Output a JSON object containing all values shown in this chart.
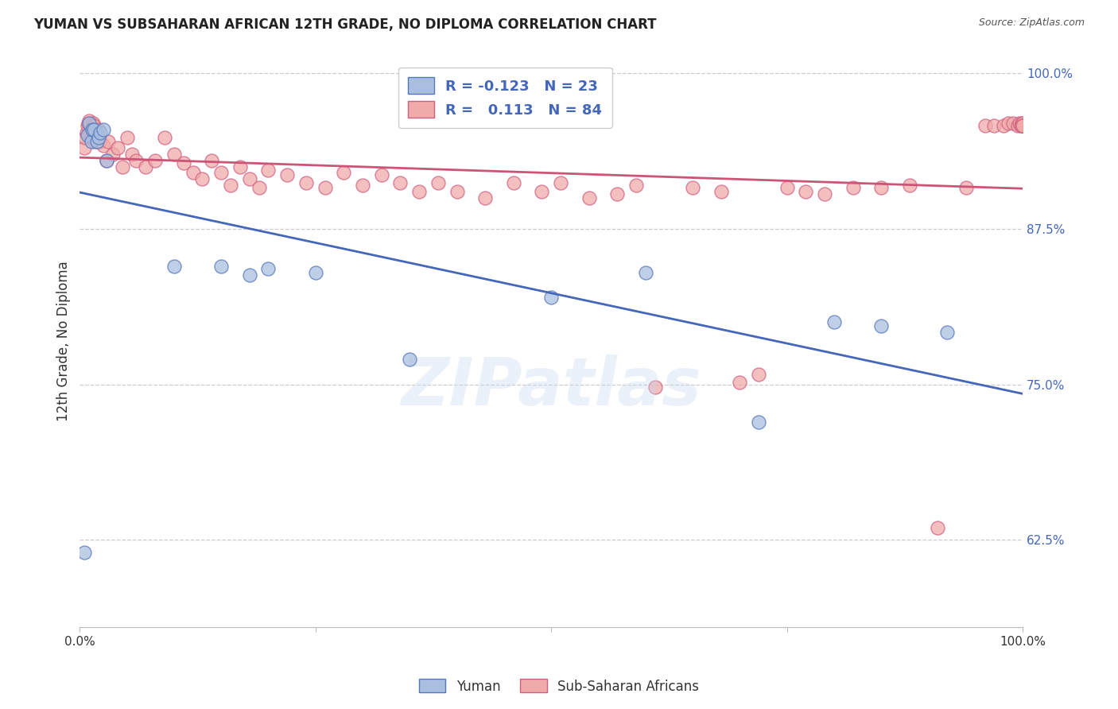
{
  "title": "YUMAN VS SUBSAHARAN AFRICAN 12TH GRADE, NO DIPLOMA CORRELATION CHART",
  "source": "Source: ZipAtlas.com",
  "ylabel": "12th Grade, No Diploma",
  "xlim": [
    0.0,
    1.0
  ],
  "ylim": [
    0.555,
    1.015
  ],
  "yticks": [
    0.625,
    0.75,
    0.875,
    1.0
  ],
  "ytick_labels": [
    "62.5%",
    "75.0%",
    "87.5%",
    "100.0%"
  ],
  "background_color": "#ffffff",
  "watermark": "ZIPatlas",
  "blue_fill": "#aabfe0",
  "blue_edge": "#5577bb",
  "pink_fill": "#f0aaaa",
  "pink_edge": "#d06080",
  "blue_line_color": "#4466bb",
  "pink_line_color": "#cc5577",
  "legend_blue_r": "-0.123",
  "legend_blue_n": "23",
  "legend_pink_r": "0.113",
  "legend_pink_n": "84",
  "blue_scatter_x": [
    0.005,
    0.008,
    0.01,
    0.012,
    0.013,
    0.015,
    0.018,
    0.02,
    0.022,
    0.025,
    0.028,
    0.1,
    0.15,
    0.18,
    0.2,
    0.25,
    0.35,
    0.5,
    0.6,
    0.72,
    0.8,
    0.85,
    0.92
  ],
  "blue_scatter_y": [
    0.615,
    0.95,
    0.96,
    0.945,
    0.955,
    0.955,
    0.945,
    0.948,
    0.952,
    0.955,
    0.93,
    0.845,
    0.845,
    0.838,
    0.843,
    0.84,
    0.77,
    0.82,
    0.84,
    0.72,
    0.8,
    0.797,
    0.792
  ],
  "pink_scatter_x": [
    0.005,
    0.006,
    0.007,
    0.008,
    0.009,
    0.01,
    0.011,
    0.012,
    0.013,
    0.014,
    0.015,
    0.016,
    0.017,
    0.018,
    0.019,
    0.02,
    0.022,
    0.025,
    0.028,
    0.03,
    0.035,
    0.04,
    0.045,
    0.05,
    0.055,
    0.06,
    0.07,
    0.08,
    0.09,
    0.1,
    0.11,
    0.12,
    0.13,
    0.14,
    0.15,
    0.16,
    0.17,
    0.18,
    0.19,
    0.2,
    0.22,
    0.24,
    0.26,
    0.28,
    0.3,
    0.32,
    0.34,
    0.36,
    0.38,
    0.4,
    0.43,
    0.46,
    0.49,
    0.51,
    0.54,
    0.57,
    0.59,
    0.61,
    0.65,
    0.68,
    0.7,
    0.72,
    0.75,
    0.77,
    0.79,
    0.82,
    0.85,
    0.88,
    0.91,
    0.94,
    0.96,
    0.97,
    0.98,
    0.985,
    0.99,
    0.995,
    0.997,
    0.998,
    0.999,
    1.0,
    1.0,
    1.0,
    1.0,
    1.0
  ],
  "pink_scatter_y": [
    0.94,
    0.948,
    0.952,
    0.958,
    0.96,
    0.962,
    0.95,
    0.948,
    0.955,
    0.96,
    0.958,
    0.945,
    0.952,
    0.95,
    0.945,
    0.955,
    0.945,
    0.942,
    0.93,
    0.945,
    0.935,
    0.94,
    0.925,
    0.948,
    0.935,
    0.93,
    0.925,
    0.93,
    0.948,
    0.935,
    0.928,
    0.92,
    0.915,
    0.93,
    0.92,
    0.91,
    0.925,
    0.915,
    0.908,
    0.922,
    0.918,
    0.912,
    0.908,
    0.92,
    0.91,
    0.918,
    0.912,
    0.905,
    0.912,
    0.905,
    0.9,
    0.912,
    0.905,
    0.912,
    0.9,
    0.903,
    0.91,
    0.748,
    0.908,
    0.905,
    0.752,
    0.758,
    0.908,
    0.905,
    0.903,
    0.908,
    0.908,
    0.91,
    0.635,
    0.908,
    0.958,
    0.958,
    0.958,
    0.96,
    0.96,
    0.958,
    0.96,
    0.958,
    0.96,
    0.958,
    0.958,
    0.96,
    0.958,
    0.958
  ]
}
